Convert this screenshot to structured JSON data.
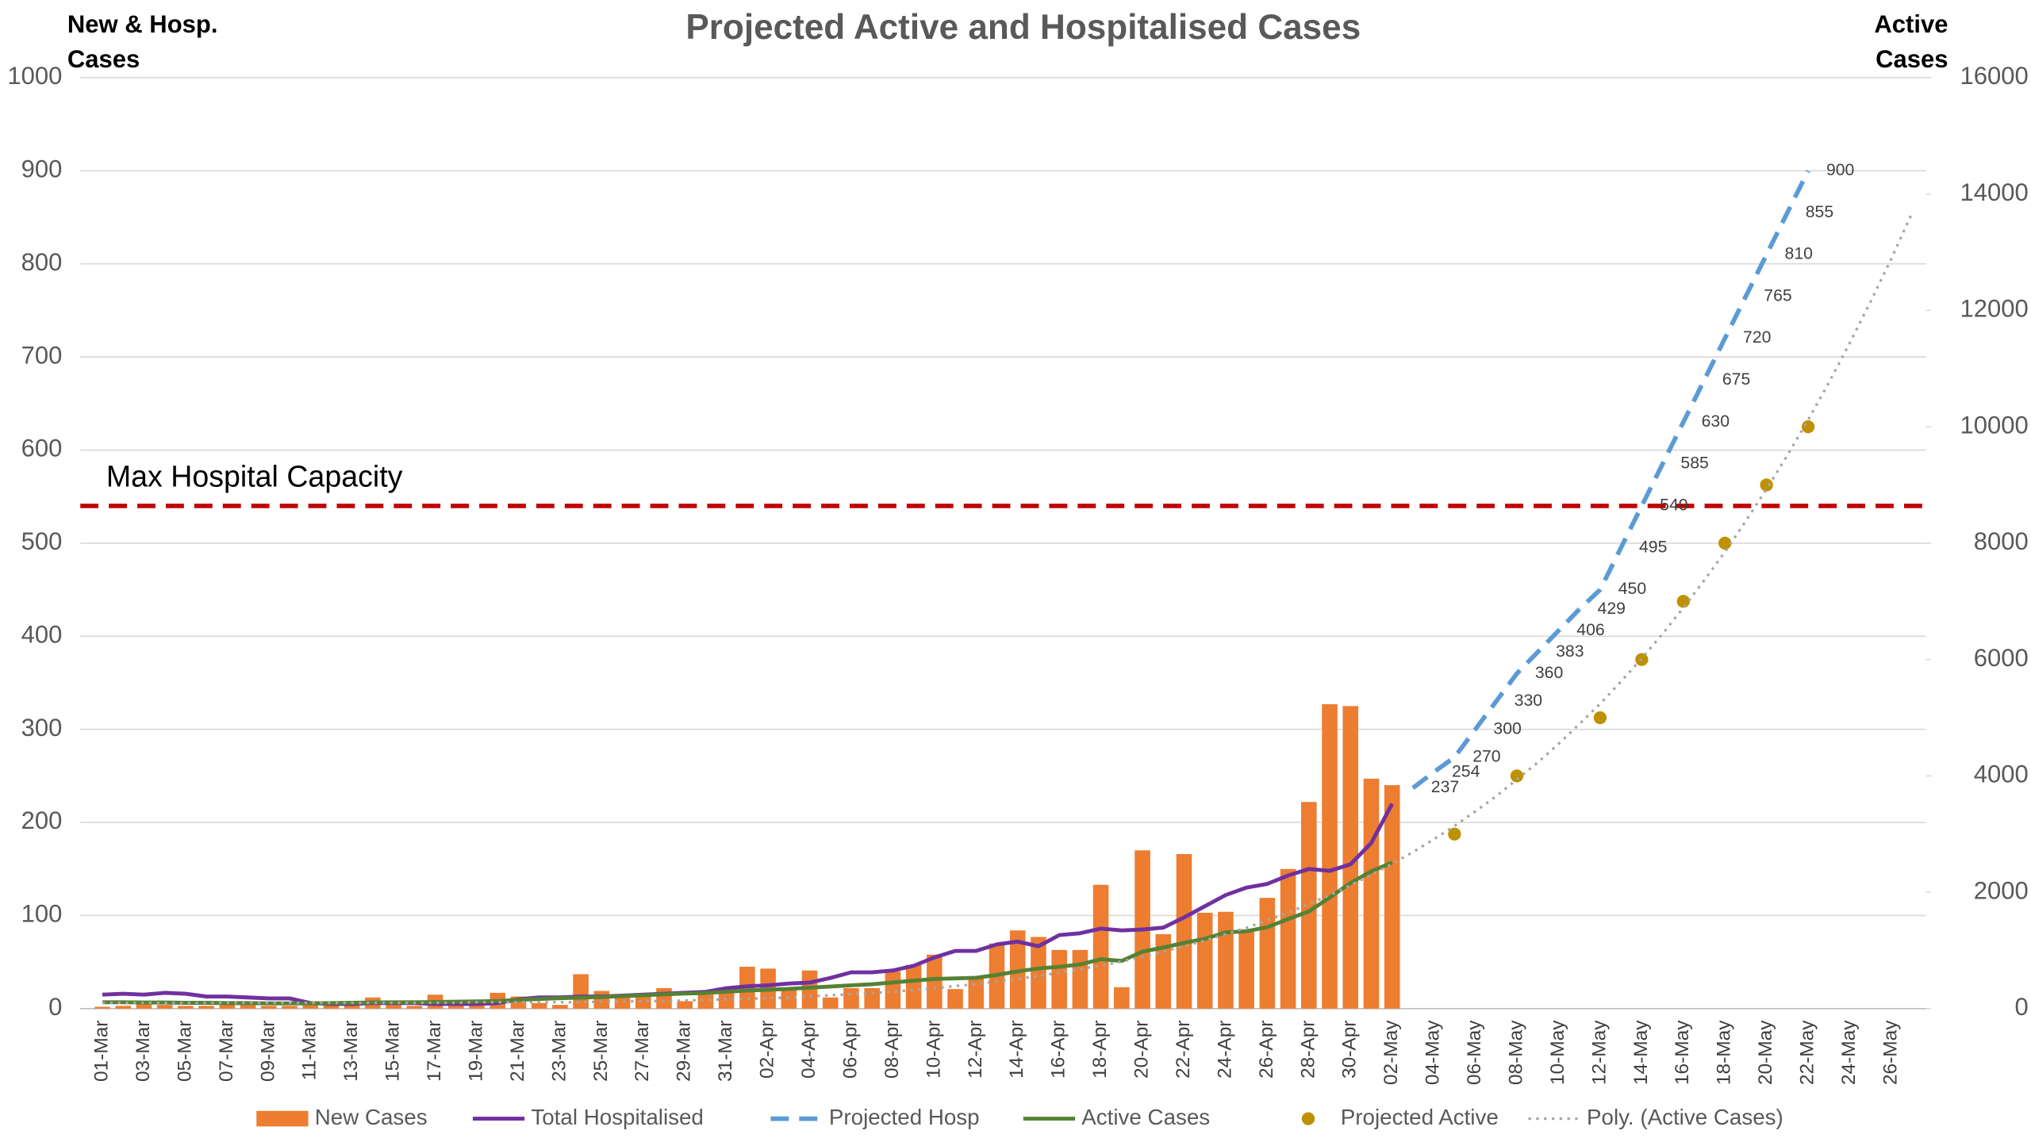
{
  "chart_data": {
    "type": "combo",
    "title": "Projected Active and Hospitalised Cases",
    "ylabel": [
      "New & Hosp.",
      "Cases"
    ],
    "y2label": [
      "Active",
      "Cases"
    ],
    "categories": [
      "01-Mar",
      null,
      "03-Mar",
      null,
      "05-Mar",
      null,
      "07-Mar",
      null,
      "09-Mar",
      null,
      "11-Mar",
      null,
      "13-Mar",
      null,
      "15-Mar",
      null,
      "17-Mar",
      null,
      "19-Mar",
      null,
      "21-Mar",
      null,
      "23-Mar",
      null,
      "25-Mar",
      null,
      "27-Mar",
      null,
      "29-Mar",
      null,
      "31-Mar",
      null,
      "02-Apr",
      null,
      "04-Apr",
      null,
      "06-Apr",
      null,
      "08-Apr",
      null,
      "10-Apr",
      null,
      "12-Apr",
      null,
      "14-Apr",
      null,
      "16-Apr",
      null,
      "18-Apr",
      null,
      "20-Apr",
      null,
      "22-Apr",
      null,
      "24-Apr",
      null,
      "26-Apr",
      null,
      "28-Apr",
      null,
      "30-Apr",
      null,
      "02-May",
      null,
      "04-May",
      null,
      "06-May",
      null,
      "08-May",
      null,
      "10-May",
      null,
      "12-May",
      null,
      "14-May",
      null,
      "16-May",
      null,
      "18-May",
      null,
      "20-May",
      null,
      "22-May",
      null,
      "24-May",
      null,
      "26-May",
      null
    ],
    "series": [
      {
        "name": "New Cases",
        "kind": "bar",
        "axis": "y",
        "color": "#ed7d31",
        "values": [
          2,
          3,
          6,
          4,
          3,
          3,
          5,
          4,
          3,
          3,
          5,
          4,
          5,
          12,
          6,
          3,
          15,
          6,
          5,
          17,
          13,
          6,
          4,
          37,
          19,
          12,
          14,
          22,
          8,
          15,
          18,
          45,
          43,
          20,
          41,
          12,
          22,
          22,
          40,
          47,
          58,
          21,
          33,
          70,
          84,
          77,
          63,
          63,
          133,
          23,
          170,
          80,
          166,
          103,
          104,
          85,
          119,
          150,
          222,
          327,
          325,
          247,
          240,
          null,
          null,
          null,
          null,
          null,
          null,
          null,
          null,
          null,
          null,
          null,
          null,
          null,
          null,
          null,
          null,
          null,
          null,
          null,
          null,
          null,
          null,
          null,
          null,
          null
        ]
      },
      {
        "name": "Total Hospitalised",
        "kind": "line",
        "axis": "y",
        "color": "#7030a0",
        "values": [
          15,
          16,
          15,
          17,
          16,
          13,
          13,
          12,
          11,
          11,
          6,
          5,
          5,
          6,
          6,
          6,
          5,
          5,
          5,
          6,
          10,
          12,
          12,
          13,
          13,
          14,
          15,
          16,
          17,
          18,
          22,
          24,
          25,
          27,
          28,
          33,
          39,
          39,
          41,
          46,
          55,
          62,
          62,
          69,
          72,
          67,
          79,
          81,
          86,
          84,
          85,
          87,
          98,
          110,
          122,
          130,
          134,
          143,
          150,
          148,
          155,
          178,
          220,
          null,
          null,
          null,
          null,
          null,
          null,
          null,
          null,
          null,
          null,
          null,
          null,
          null,
          null,
          null,
          null,
          null,
          null,
          null,
          null,
          null,
          null,
          null,
          null,
          null
        ]
      },
      {
        "name": "Projected Hosp",
        "kind": "dashed",
        "axis": "y",
        "color": "#5b9bd5",
        "labels": true,
        "values": [
          null,
          null,
          null,
          null,
          null,
          null,
          null,
          null,
          null,
          null,
          null,
          null,
          null,
          null,
          null,
          null,
          null,
          null,
          null,
          null,
          null,
          null,
          null,
          null,
          null,
          null,
          null,
          null,
          null,
          null,
          null,
          null,
          null,
          null,
          null,
          null,
          null,
          null,
          null,
          null,
          null,
          null,
          null,
          null,
          null,
          null,
          null,
          null,
          null,
          null,
          null,
          null,
          null,
          null,
          null,
          null,
          null,
          null,
          null,
          null,
          null,
          null,
          null,
          237,
          254,
          270,
          300,
          330,
          360,
          383,
          406,
          429,
          450,
          495,
          540,
          585,
          630,
          675,
          720,
          765,
          810,
          855,
          900,
          null,
          null,
          null,
          null,
          null
        ]
      },
      {
        "name": "Active Cases",
        "kind": "line",
        "axis": "y2",
        "color": "#548235",
        "values": [
          110,
          110,
          105,
          105,
          100,
          100,
          95,
          95,
          90,
          90,
          90,
          95,
          100,
          105,
          110,
          110,
          115,
          120,
          125,
          130,
          150,
          165,
          180,
          190,
          200,
          215,
          230,
          245,
          260,
          270,
          290,
          310,
          325,
          340,
          360,
          380,
          400,
          420,
          450,
          480,
          510,
          520,
          530,
          580,
          640,
          690,
          720,
          760,
          850,
          820,
          980,
          1050,
          1130,
          1200,
          1310,
          1330,
          1400,
          1540,
          1670,
          1910,
          2160,
          2360,
          2510,
          null,
          null,
          null,
          null,
          null,
          null,
          null,
          null,
          null,
          null,
          null,
          null,
          null,
          null,
          null,
          null,
          null,
          null,
          null,
          null,
          null,
          null,
          null,
          null,
          null
        ]
      },
      {
        "name": "Projected Active",
        "kind": "marker",
        "axis": "y2",
        "color": "#bf9000",
        "values": [
          null,
          null,
          null,
          null,
          null,
          null,
          null,
          null,
          null,
          null,
          null,
          null,
          null,
          null,
          null,
          null,
          null,
          null,
          null,
          null,
          null,
          null,
          null,
          null,
          null,
          null,
          null,
          null,
          null,
          null,
          null,
          null,
          null,
          null,
          null,
          null,
          null,
          null,
          null,
          null,
          null,
          null,
          null,
          null,
          null,
          null,
          null,
          null,
          null,
          null,
          null,
          null,
          null,
          null,
          null,
          null,
          null,
          null,
          null,
          null,
          null,
          null,
          null,
          null,
          null,
          3000,
          null,
          null,
          4000,
          null,
          null,
          null,
          5000,
          null,
          6000,
          null,
          7000,
          null,
          8000,
          null,
          9000,
          null,
          10000,
          null,
          null,
          null,
          null,
          null
        ]
      },
      {
        "name": "Poly. (Active Cases)",
        "kind": "dotted",
        "axis": "y2",
        "color": "#a6a6a6",
        "values": [
          100,
          100,
          100,
          100,
          100,
          100,
          100,
          100,
          100,
          100,
          100,
          100,
          100,
          100,
          100,
          100,
          100,
          100,
          110,
          110,
          110,
          110,
          110,
          110,
          120,
          120,
          130,
          130,
          140,
          150,
          160,
          170,
          180,
          190,
          210,
          230,
          250,
          270,
          290,
          320,
          350,
          390,
          420,
          470,
          510,
          560,
          620,
          680,
          740,
          810,
          890,
          980,
          1070,
          1170,
          1280,
          1390,
          1520,
          1650,
          1800,
          1950,
          2120,
          2300,
          2490,
          2690,
          2910,
          3140,
          3390,
          3650,
          3940,
          4230,
          4550,
          4890,
          5240,
          5620,
          6020,
          6440,
          6890,
          7360,
          7850,
          8380,
          8930,
          9510,
          10120,
          10760,
          11440,
          12150,
          12890,
          13680
        ]
      }
    ],
    "ylim": [
      0,
      1000
    ],
    "yticks": [
      0,
      100,
      200,
      300,
      400,
      500,
      600,
      700,
      800,
      900,
      1000
    ],
    "y2lim": [
      0,
      16000
    ],
    "y2ticks": [
      0,
      2000,
      4000,
      6000,
      8000,
      10000,
      12000,
      14000,
      16000
    ],
    "grid": true,
    "reference_line": {
      "label": "Max Hospital Capacity",
      "value": 540,
      "axis": "y",
      "color": "#c00000"
    },
    "legend": "bottom"
  }
}
